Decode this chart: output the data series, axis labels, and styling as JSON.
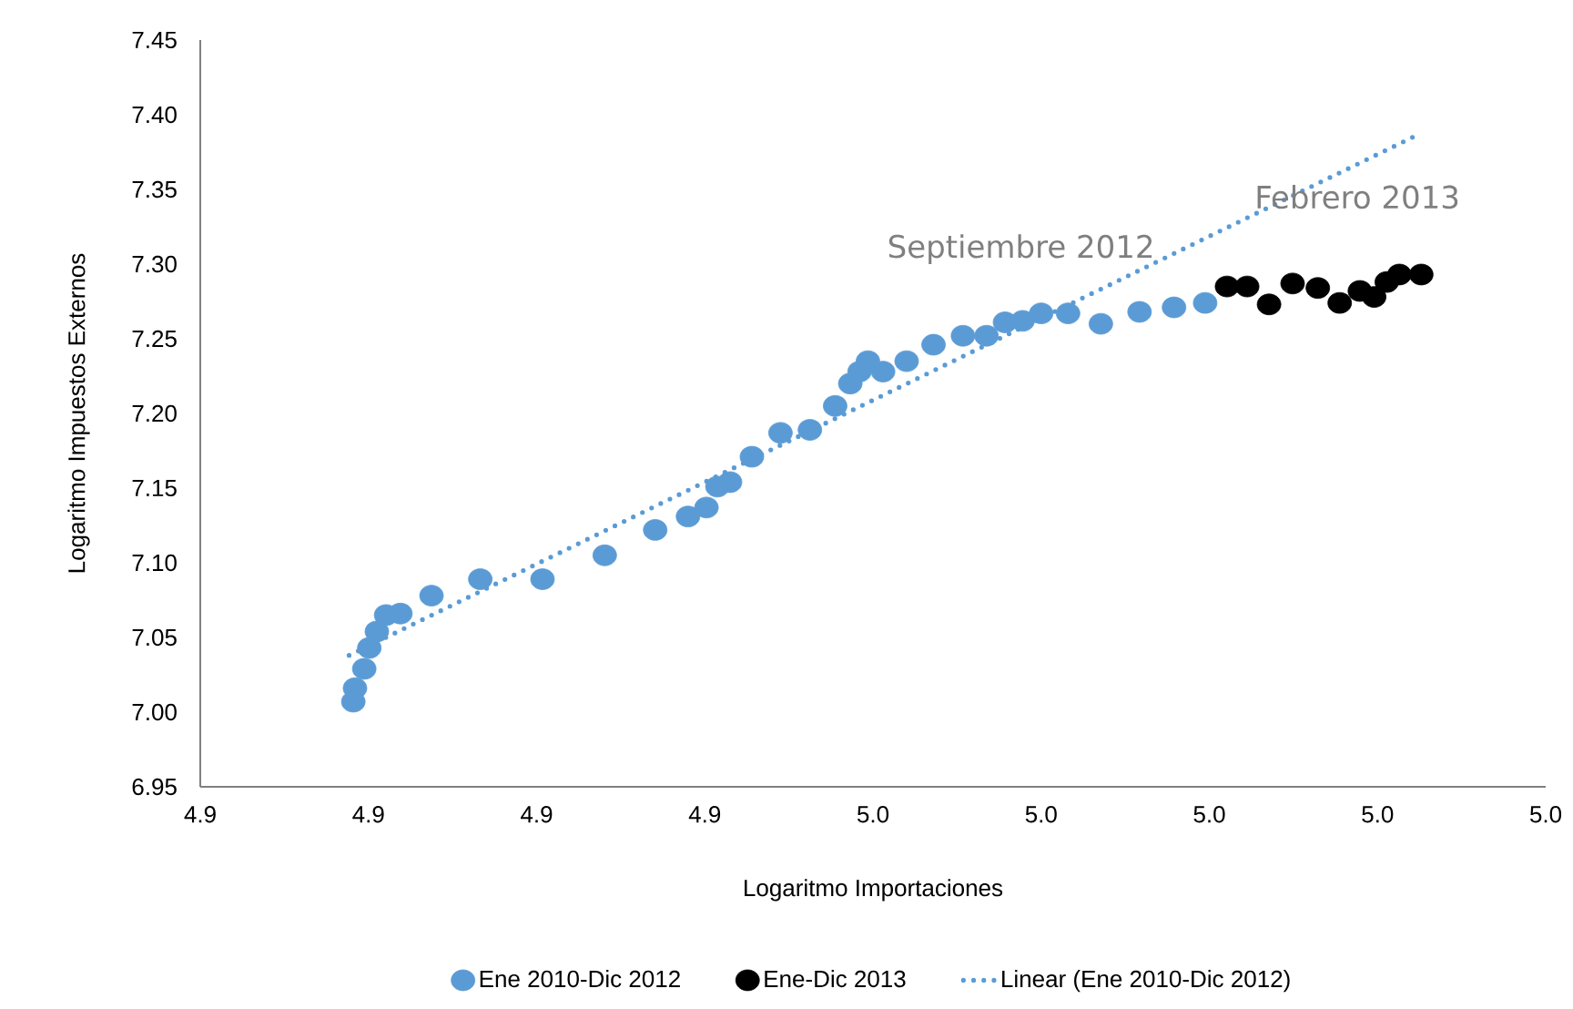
{
  "chart_data": {
    "type": "scatter",
    "xlabel": "Logaritmo Importaciones",
    "ylabel": "Logaritmo Impuestos Externos",
    "xlim": [
      4.88,
      5.04
    ],
    "xticks": [
      {
        "value": 4.88,
        "label": "4.9"
      },
      {
        "value": 4.9,
        "label": "4.9"
      },
      {
        "value": 4.92,
        "label": "4.9"
      },
      {
        "value": 4.94,
        "label": "4.9"
      },
      {
        "value": 4.96,
        "label": "5.0"
      },
      {
        "value": 4.98,
        "label": "5.0"
      },
      {
        "value": 5.0,
        "label": "5.0"
      },
      {
        "value": 5.02,
        "label": "5.0"
      },
      {
        "value": 5.04,
        "label": "5.0"
      }
    ],
    "ylim": [
      6.95,
      7.45
    ],
    "yticks": [
      {
        "value": 6.95,
        "label": "6.95"
      },
      {
        "value": 7.0,
        "label": "7.00"
      },
      {
        "value": 7.05,
        "label": "7.05"
      },
      {
        "value": 7.1,
        "label": "7.10"
      },
      {
        "value": 7.15,
        "label": "7.15"
      },
      {
        "value": 7.2,
        "label": "7.20"
      },
      {
        "value": 7.25,
        "label": "7.25"
      },
      {
        "value": 7.3,
        "label": "7.30"
      },
      {
        "value": 7.35,
        "label": "7.35"
      },
      {
        "value": 7.4,
        "label": "7.40"
      },
      {
        "value": 7.45,
        "label": "7.45"
      }
    ],
    "grid": false,
    "legend": "bottom",
    "marker": "circle",
    "annotations": [
      "Septiembre 2012",
      "Febrero 2013"
    ],
    "series": [
      {
        "name": "Ene 2010-Dic 2012",
        "color": "#5b9bd5",
        "x": [
          4.8982,
          4.8984,
          4.8995,
          4.9001,
          4.901,
          4.9021,
          4.9038,
          4.9075,
          4.9133,
          4.9207,
          4.9281,
          4.9341,
          4.938,
          4.9402,
          4.9415,
          4.943,
          4.9456,
          4.949,
          4.9525,
          4.9555,
          4.9573,
          4.9584,
          4.9594,
          4.9612,
          4.964,
          4.9672,
          4.9707,
          4.9735,
          4.9757,
          4.9778,
          4.98,
          4.9832,
          4.9871,
          4.9917,
          4.9958,
          4.9995
        ],
        "values": [
          7.007,
          7.016,
          7.029,
          7.043,
          7.054,
          7.065,
          7.066,
          7.078,
          7.089,
          7.089,
          7.105,
          7.122,
          7.131,
          7.137,
          7.151,
          7.154,
          7.171,
          7.187,
          7.189,
          7.205,
          7.22,
          7.228,
          7.235,
          7.228,
          7.235,
          7.246,
          7.252,
          7.252,
          7.261,
          7.262,
          7.267,
          7.267,
          7.26,
          7.268,
          7.271,
          7.274
        ]
      },
      {
        "name": "Ene-Dic 2013",
        "color": "#000000",
        "x": [
          5.0021,
          5.0045,
          5.0071,
          5.0099,
          5.0129,
          5.0155,
          5.0179,
          5.0196,
          5.0211,
          5.0226,
          5.0252
        ],
        "values": [
          7.285,
          7.285,
          7.273,
          7.287,
          7.284,
          7.274,
          7.282,
          7.278,
          7.288,
          7.293,
          7.293
        ]
      },
      {
        "name": "Linear (Ene 2010-Dic 2012)",
        "type": "line",
        "color": "#5b9bd5",
        "line_style": "dotted",
        "marker": "none",
        "x": [
          4.8977,
          5.0242
        ],
        "values": [
          7.038,
          7.385
        ]
      }
    ]
  }
}
